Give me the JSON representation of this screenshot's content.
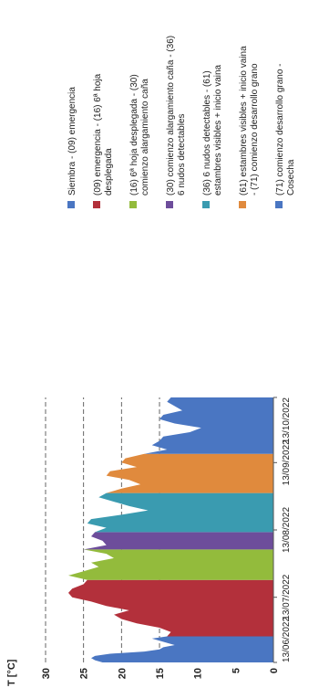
{
  "chart_data": {
    "type": "area",
    "orientation": "rotated-90-ccw",
    "ylabel": "T [°C]",
    "xlabel": "",
    "ylim": [
      0,
      30
    ],
    "y_ticks": [
      "0",
      "5",
      "10",
      "15",
      "20",
      "25",
      "30"
    ],
    "gridlines": [
      15,
      20,
      25,
      30
    ],
    "grid_style": "dashed",
    "x_ticks": [
      {
        "date": "2022-06-13",
        "label": "13/06/2022"
      },
      {
        "date": "2022-07-13",
        "label": "13/07/2022"
      },
      {
        "date": "2022-08-13",
        "label": "13/08/2022"
      },
      {
        "date": "2022-09-13",
        "label": "13/09/2022"
      },
      {
        "date": "2022-10-13",
        "label": "13/10/2022"
      }
    ],
    "legend_position": "right",
    "series": [
      {
        "name": "Siembra - (09) emergencia",
        "color": "#4a76c2",
        "x": [
          "2022-06-13",
          "2022-06-14",
          "2022-06-15",
          "2022-06-16",
          "2022-06-17",
          "2022-06-18",
          "2022-06-19",
          "2022-06-20",
          "2022-06-21",
          "2022-06-22",
          "2022-06-23",
          "2022-06-24",
          "2022-06-25"
        ],
        "values": [
          22.5,
          23.5,
          24,
          23.5,
          21.5,
          17,
          15,
          14.5,
          13,
          14,
          15,
          16,
          14
        ]
      },
      {
        "name": "(09) emergencia - (16) 6ª hoja desplegada",
        "color": "#b3303b",
        "x": [
          "2022-06-25",
          "2022-06-27",
          "2022-06-29",
          "2022-07-01",
          "2022-07-03",
          "2022-07-05",
          "2022-07-07",
          "2022-07-09",
          "2022-07-11",
          "2022-07-13",
          "2022-07-15",
          "2022-07-17",
          "2022-07-19",
          "2022-07-21"
        ],
        "values": [
          14,
          13.5,
          15,
          18,
          20,
          21,
          19,
          22,
          24,
          26.5,
          27,
          26.5,
          25,
          24.5
        ]
      },
      {
        "name": "(16) 6ª hoja desplegada - (30) comienzo alargamiento caña",
        "color": "#93bb3c",
        "x": [
          "2022-07-21",
          "2022-07-23",
          "2022-07-25",
          "2022-07-27",
          "2022-07-29",
          "2022-07-31",
          "2022-08-02",
          "2022-08-04"
        ],
        "values": [
          24.5,
          27,
          25,
          23,
          24,
          21,
          22,
          25
        ]
      },
      {
        "name": "(30) comienzo alargamiento caña - (36) 6 nudos detectables",
        "color": "#6d4d9b",
        "x": [
          "2022-08-04",
          "2022-08-06",
          "2022-08-08",
          "2022-08-10",
          "2022-08-12"
        ],
        "values": [
          25,
          22,
          22.5,
          24,
          23.5
        ]
      },
      {
        "name": "(36) 6 nudos detectables - (61) estambres visibles + inicio vaina",
        "color": "#3a9bb0",
        "x": [
          "2022-08-12",
          "2022-08-14",
          "2022-08-16",
          "2022-08-18",
          "2022-08-20",
          "2022-08-22",
          "2022-08-24",
          "2022-08-26",
          "2022-08-28",
          "2022-08-30"
        ],
        "values": [
          23.5,
          22,
          24.5,
          24,
          20,
          16.5,
          19,
          21,
          23,
          22
        ]
      },
      {
        "name": "(61) estambres visibles + inicio vaina - (71) comienzo desarrollo grano",
        "color": "#e08a3d",
        "x": [
          "2022-08-30",
          "2022-09-01",
          "2022-09-03",
          "2022-09-05",
          "2022-09-07",
          "2022-09-09",
          "2022-09-11",
          "2022-09-13",
          "2022-09-15",
          "2022-09-17"
        ],
        "values": [
          22,
          20,
          17.5,
          19,
          22,
          21.5,
          18,
          20,
          19.5,
          17
        ]
      },
      {
        "name": "(71) comienzo desarrollo grano - Cosecha",
        "color": "#4a76c2",
        "x": [
          "2022-09-17",
          "2022-09-19",
          "2022-09-21",
          "2022-09-23",
          "2022-09-25",
          "2022-09-27",
          "2022-09-29",
          "2022-10-01",
          "2022-10-03",
          "2022-10-05",
          "2022-10-07",
          "2022-10-09",
          "2022-10-11",
          "2022-10-13"
        ],
        "values": [
          17,
          14,
          16,
          15,
          14.5,
          11,
          9.5,
          13,
          15,
          14.5,
          12,
          13,
          14,
          13.5
        ]
      }
    ]
  }
}
